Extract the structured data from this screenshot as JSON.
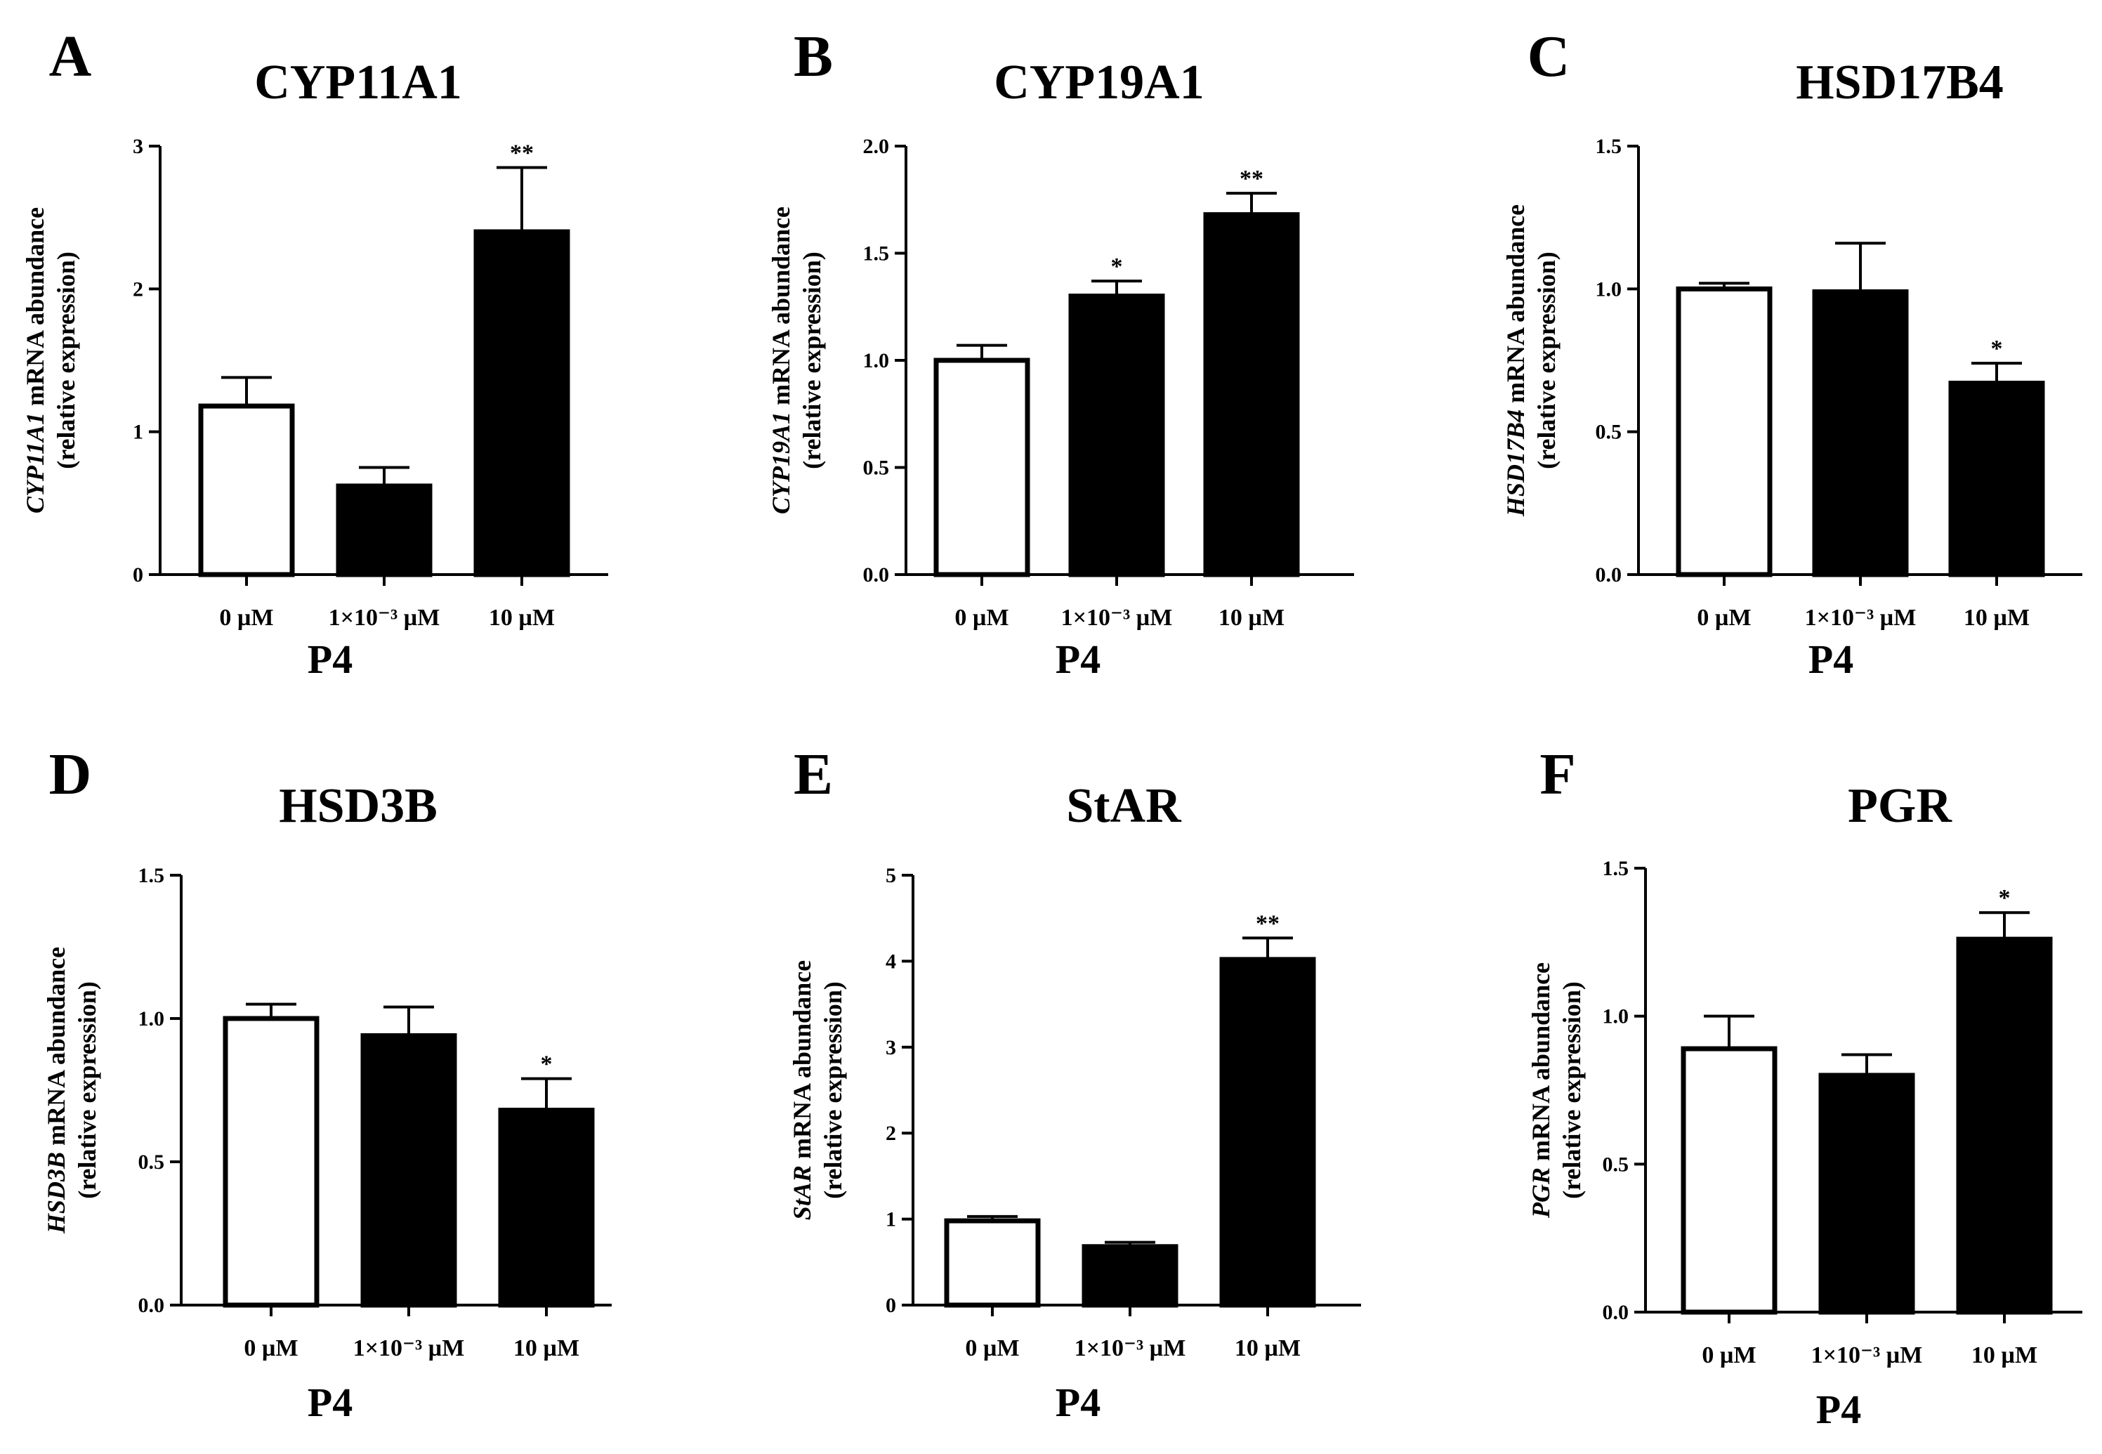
{
  "chart_data": [
    {
      "panel": "A",
      "title": "CYP11A1",
      "type": "bar",
      "categories": [
        "0 µM",
        "1×10⁻³ µM",
        "10 µM"
      ],
      "values": [
        1.18,
        0.62,
        2.4
      ],
      "errors": [
        0.2,
        0.13,
        0.45
      ],
      "significance": [
        "",
        "",
        "**"
      ],
      "fills": [
        "#ffffff",
        "#000000",
        "#000000"
      ],
      "xlabel": "P4",
      "ylabel_gene": "CYP11A1",
      "ylabel_rest": " mRNA abundance",
      "ylabel_line2": "(relative expression)",
      "ylim": [
        0,
        3
      ],
      "yticks": [
        "0",
        "1",
        "2",
        "3"
      ]
    },
    {
      "panel": "B",
      "title": "CYP19A1",
      "type": "bar",
      "categories": [
        "0 µM",
        "1×10⁻³ µM",
        "10 µM"
      ],
      "values": [
        1.0,
        1.3,
        1.68
      ],
      "errors": [
        0.07,
        0.07,
        0.1
      ],
      "significance": [
        "",
        "*",
        "**"
      ],
      "fills": [
        "#ffffff",
        "#000000",
        "#000000"
      ],
      "xlabel": "P4",
      "ylabel_gene": "CYP19A1",
      "ylabel_rest": " mRNA abundance",
      "ylabel_line2": "(relative expression)",
      "ylim": [
        0,
        2.0
      ],
      "yticks": [
        "0.0",
        "0.5",
        "1.0",
        "1.5",
        "2.0"
      ]
    },
    {
      "panel": "C",
      "title": "HSD17B4",
      "type": "bar",
      "categories": [
        "0 µM",
        "1×10⁻³ µM",
        "10 µM"
      ],
      "values": [
        1.0,
        0.99,
        0.67
      ],
      "errors": [
        0.02,
        0.17,
        0.07
      ],
      "significance": [
        "",
        "",
        "*"
      ],
      "fills": [
        "#ffffff",
        "#000000",
        "#000000"
      ],
      "xlabel": "P4",
      "ylabel_gene": "HSD17B4",
      "ylabel_rest": " mRNA abundance",
      "ylabel_line2": "(relative expression)",
      "ylim": [
        0,
        1.5
      ],
      "yticks": [
        "0.0",
        "0.5",
        "1.0",
        "1.5"
      ]
    },
    {
      "panel": "D",
      "title": "HSD3B",
      "type": "bar",
      "categories": [
        "0 µM",
        "1×10⁻³ µM",
        "10 µM"
      ],
      "values": [
        1.0,
        0.94,
        0.68
      ],
      "errors": [
        0.05,
        0.1,
        0.11
      ],
      "significance": [
        "",
        "",
        "*"
      ],
      "fills": [
        "#ffffff",
        "#000000",
        "#000000"
      ],
      "xlabel": "P4",
      "ylabel_gene": "HSD3B",
      "ylabel_rest": " mRNA abundance",
      "ylabel_line2": "(relative expression)",
      "ylim": [
        0,
        1.5
      ],
      "yticks": [
        "0.0",
        "0.5",
        "1.0",
        "1.5"
      ]
    },
    {
      "panel": "E",
      "title": "StAR",
      "type": "bar",
      "categories": [
        "0 µM",
        "1×10⁻³ µM",
        "10 µM"
      ],
      "values": [
        0.98,
        0.68,
        4.02
      ],
      "errors": [
        0.05,
        0.05,
        0.25
      ],
      "significance": [
        "",
        "",
        "**"
      ],
      "fills": [
        "#ffffff",
        "#000000",
        "#000000"
      ],
      "xlabel": "P4",
      "ylabel_gene": "StAR",
      "ylabel_rest": " mRNA abundance",
      "ylabel_line2": "(relative expression)",
      "ylim": [
        0,
        5
      ],
      "yticks": [
        "0",
        "1",
        "2",
        "3",
        "4",
        "5"
      ]
    },
    {
      "panel": "F",
      "title": "PGR",
      "type": "bar",
      "categories": [
        "0 µM",
        "1×10⁻³ µM",
        "10 µM"
      ],
      "values": [
        0.89,
        0.8,
        1.26
      ],
      "errors": [
        0.11,
        0.07,
        0.09
      ],
      "significance": [
        "",
        "",
        "*"
      ],
      "fills": [
        "#ffffff",
        "#000000",
        "#000000"
      ],
      "xlabel": "P4",
      "ylabel_gene": "PGR",
      "ylabel_rest": " mRNA abundance",
      "ylabel_line2": "(relative expression)",
      "ylim": [
        0,
        1.5
      ],
      "yticks": [
        "0.0",
        "0.5",
        "1.0",
        "1.5"
      ]
    }
  ]
}
